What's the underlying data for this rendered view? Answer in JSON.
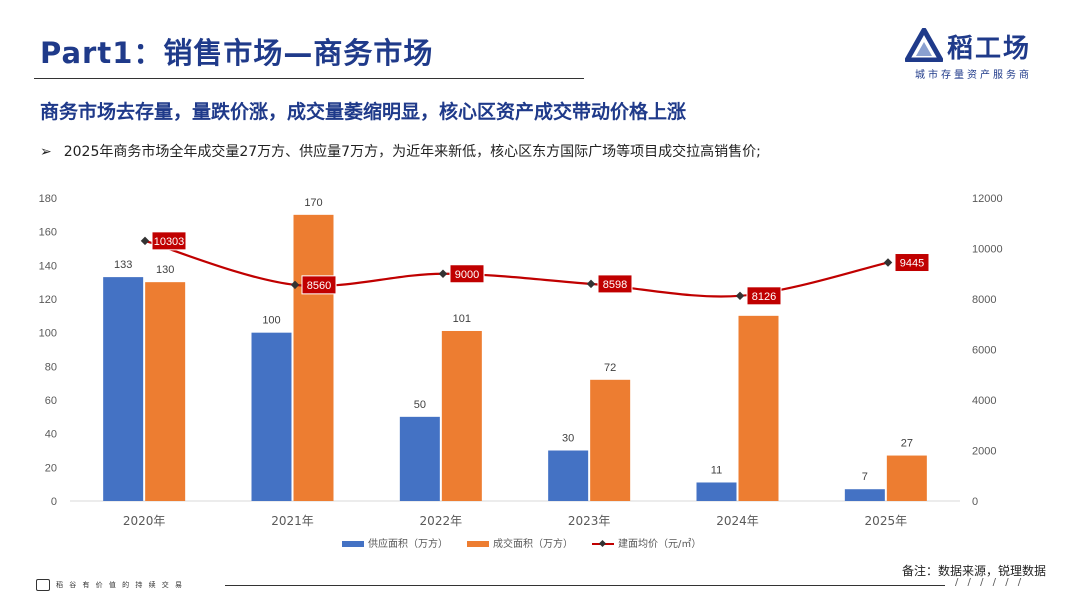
{
  "header": {
    "title": "Part1：销售市场—商务市场",
    "logo_name": "稻工场",
    "logo_tagline": "城市存量资产服务商"
  },
  "subtitle": "商务市场去存量，量跌价涨，成交量萎缩明显，核心区资产成交带动价格上涨",
  "bullet": {
    "marker": "➢",
    "text": "2025年商务市场全年成交量27万方、供应量7万方，为近年来新低，核心区东方国际广场等项目成交拉高销售价;"
  },
  "colors": {
    "brand": "#1f3a8a",
    "supply": "#4472c4",
    "deal": "#ed7d31",
    "price": "#c00000",
    "grid": "#d9d9d9",
    "axis_text": "#595959"
  },
  "chart_data": {
    "type": "bar",
    "title": "",
    "categories": [
      "2020年",
      "2021年",
      "2022年",
      "2023年",
      "2024年",
      "2025年"
    ],
    "series": [
      {
        "name": "供应面积（万方）",
        "type": "bar",
        "axis": "left",
        "values": [
          133,
          100,
          50,
          30,
          11,
          7
        ]
      },
      {
        "name": "成交面积（万方）",
        "type": "bar",
        "axis": "left",
        "values": [
          130,
          170,
          101,
          72,
          110,
          27
        ]
      },
      {
        "name": "建面均价（元/㎡）",
        "type": "line",
        "axis": "right",
        "values": [
          10303,
          8560,
          9000,
          8598,
          8126,
          9445
        ]
      }
    ],
    "bar_labels": {
      "supply": [
        "133",
        "100",
        "50",
        "30",
        "11",
        "7"
      ],
      "deal": [
        "130",
        "170",
        "101",
        "72",
        "",
        "27"
      ]
    },
    "ylim_left": [
      0,
      180
    ],
    "yticks_left": [
      0,
      20,
      40,
      60,
      80,
      100,
      120,
      140,
      160,
      180
    ],
    "ylim_right": [
      0,
      12000
    ],
    "yticks_right": [
      0,
      2000,
      4000,
      6000,
      8000,
      10000,
      12000
    ],
    "legend_position": "bottom",
    "xlabel": "",
    "ylabel": ""
  },
  "note": "备注：数据来源，锐理数据",
  "footer": {
    "text": "稻 谷 有 价 值 的 持 续 交 易",
    "dashes": "/ / / / / /"
  }
}
